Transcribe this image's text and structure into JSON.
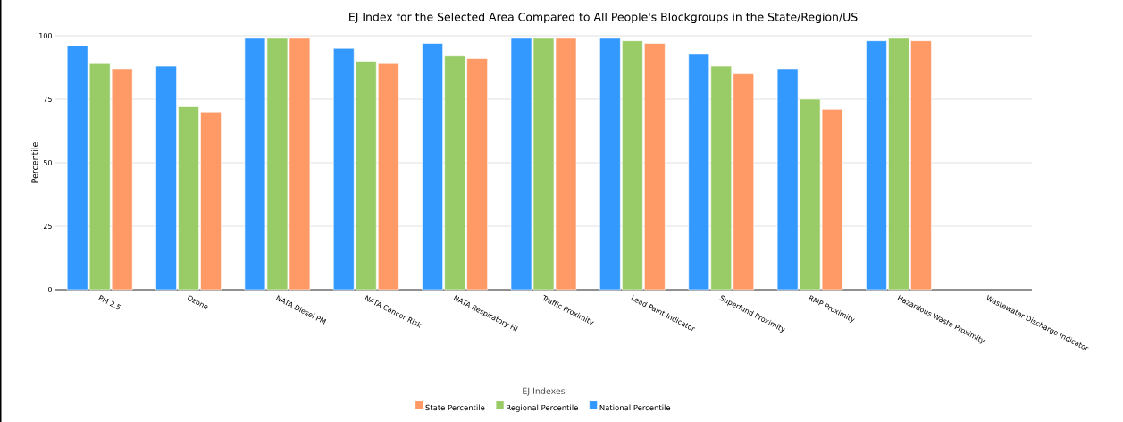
{
  "chart_data": {
    "type": "bar",
    "title": "EJ Index for the Selected Area Compared to All People's Blockgroups in the State/Region/US",
    "ylabel": "Percentile",
    "legend_title": "EJ Indexes",
    "categories": [
      "PM 2.5",
      "Ozone",
      "NATA Diesel PM",
      "NATA Cancer Risk",
      "NATA Respiratory HI",
      "Traffic Proximity",
      "Lead Paint Indicator",
      "Superfund Proximity",
      "RMP Proximity",
      "Hazardous Waste Proximity",
      "Wastewater Discharge Indicator"
    ],
    "series": [
      {
        "name": "National Percentile",
        "color": "#3399ff",
        "values": [
          96,
          88,
          99,
          95,
          97,
          99,
          99,
          93,
          87,
          98,
          null
        ]
      },
      {
        "name": "Regional Percentile",
        "color": "#99cc66",
        "values": [
          89,
          72,
          99,
          90,
          92,
          99,
          98,
          88,
          75,
          99,
          null
        ]
      },
      {
        "name": "State Percentile",
        "color": "#ff9966",
        "values": [
          87,
          70,
          99,
          89,
          91,
          99,
          97,
          85,
          71,
          98,
          null
        ]
      }
    ],
    "ylim": [
      0,
      100
    ],
    "yticks": [
      0,
      25,
      50,
      75,
      100
    ],
    "grid": "y",
    "legend": "bottom"
  }
}
